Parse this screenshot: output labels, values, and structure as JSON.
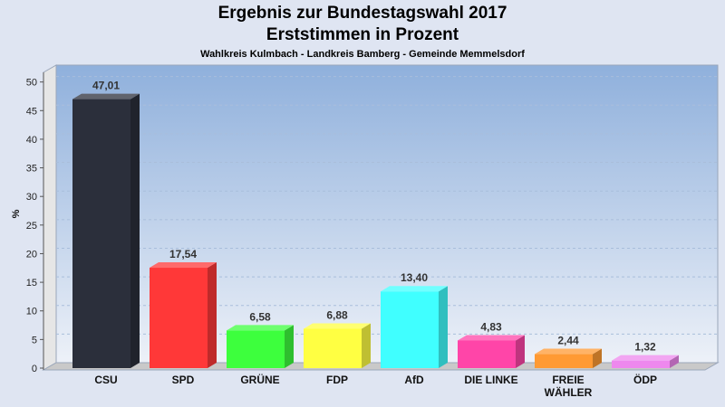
{
  "chart_data": {
    "type": "bar",
    "title": "Ergebnis zur Bundestagswahl 2017",
    "subtitle": "Erststimmen in Prozent",
    "caption": "Wahlkreis Kulmbach - Landkreis Bamberg - Gemeinde Memmelsdorf",
    "ylabel": "%",
    "xlabel": "",
    "ylim": [
      0,
      52
    ],
    "yticks": [
      "0",
      "5",
      "10",
      "15",
      "20",
      "25",
      "30",
      "35",
      "40",
      "45",
      "50"
    ],
    "grid": true,
    "categories": [
      [
        "CSU"
      ],
      [
        "SPD"
      ],
      [
        "GRÜNE"
      ],
      [
        "FDP"
      ],
      [
        "AfD"
      ],
      [
        "DIE LINKE"
      ],
      [
        "FREIE",
        "WÄHLER"
      ],
      [
        "ÖDP"
      ]
    ],
    "values": [
      47.01,
      17.54,
      6.58,
      6.88,
      13.4,
      4.83,
      2.44,
      1.32
    ],
    "value_labels": [
      "47,01",
      "17,54",
      "6,58",
      "6,88",
      "13,40",
      "4,83",
      "2,44",
      "1,32"
    ],
    "colors": [
      "#2b2f3b",
      "#ff3838",
      "#3dff3d",
      "#ffff42",
      "#40ffff",
      "#ff45a8",
      "#ff9a33",
      "#ee88ee"
    ]
  }
}
